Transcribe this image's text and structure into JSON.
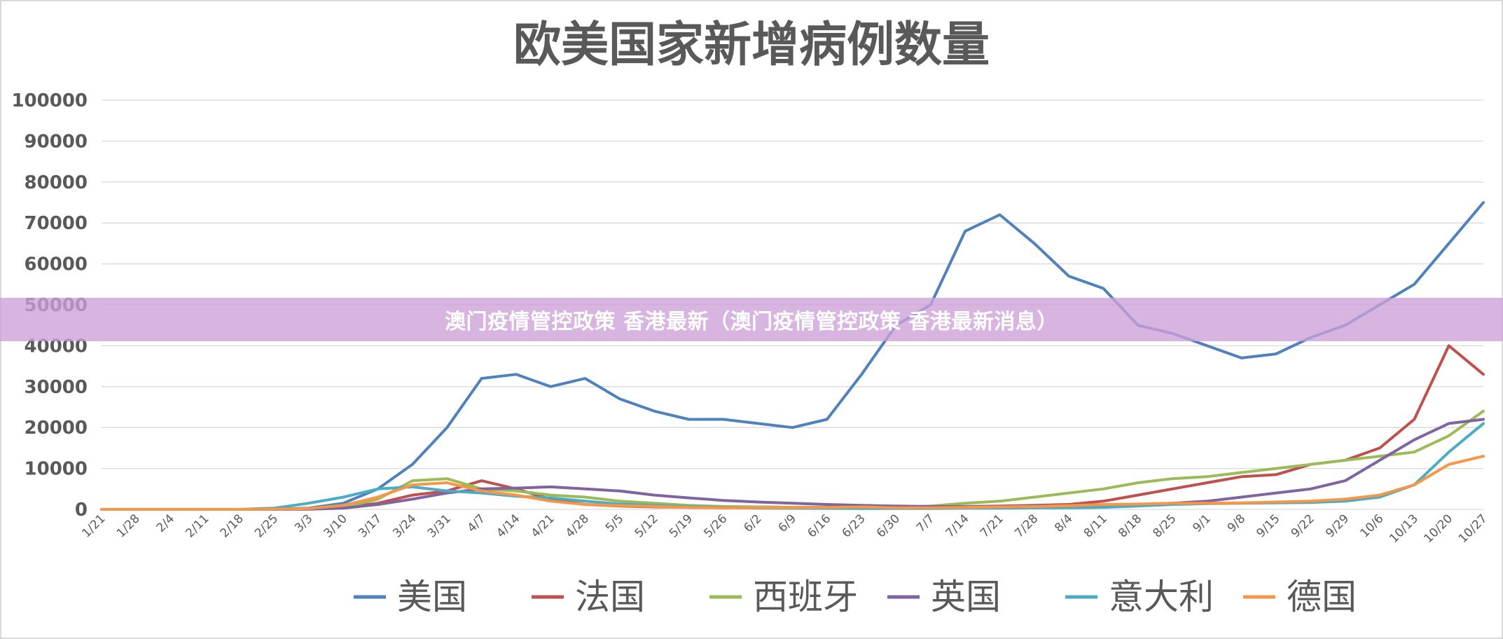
{
  "overlay": {
    "text": "澳门疫情管控政策 香港最新（澳门疫情管控政策 香港最新消息）",
    "background": "#cda0d7",
    "text_color": "#ffffff"
  },
  "chart_data": {
    "type": "line",
    "title": "欧美国家新增病例数量",
    "xlabel": "",
    "ylabel": "",
    "ylim": [
      0,
      100000
    ],
    "yticks": [
      0,
      10000,
      20000,
      30000,
      40000,
      50000,
      60000,
      70000,
      80000,
      90000,
      100000
    ],
    "grid": true,
    "legend_position": "bottom",
    "categories": [
      "1/21",
      "1/28",
      "2/4",
      "2/11",
      "2/18",
      "2/25",
      "3/3",
      "3/10",
      "3/17",
      "3/24",
      "3/31",
      "4/7",
      "4/14",
      "4/21",
      "4/28",
      "5/5",
      "5/12",
      "5/19",
      "5/26",
      "6/2",
      "6/9",
      "6/16",
      "6/23",
      "6/30",
      "7/7",
      "7/14",
      "7/21",
      "7/28",
      "8/4",
      "8/11",
      "8/18",
      "8/25",
      "9/1",
      "9/8",
      "9/15",
      "9/22",
      "9/29",
      "10/6",
      "10/13",
      "10/20",
      "10/27"
    ],
    "series": [
      {
        "name": "美国",
        "color": "#4f81bd",
        "values": [
          0,
          0,
          0,
          0,
          0,
          100,
          300,
          1500,
          5000,
          11000,
          20000,
          32000,
          33000,
          30000,
          32000,
          27000,
          24000,
          22000,
          22000,
          21000,
          20000,
          22000,
          33000,
          45000,
          50000,
          68000,
          72000,
          65000,
          57000,
          54000,
          45000,
          43000,
          40000,
          37000,
          38000,
          42000,
          45000,
          50000,
          55000,
          65000,
          75000
        ]
      },
      {
        "name": "法国",
        "color": "#c0504d",
        "values": [
          0,
          0,
          0,
          0,
          0,
          50,
          100,
          500,
          1500,
          3500,
          4500,
          7000,
          5000,
          2500,
          1200,
          800,
          600,
          500,
          400,
          600,
          500,
          500,
          600,
          500,
          600,
          700,
          800,
          1000,
          1200,
          2000,
          3500,
          5000,
          6500,
          8000,
          8500,
          11000,
          12000,
          15000,
          22000,
          40000,
          33000
        ]
      },
      {
        "name": "西班牙",
        "color": "#9bbb59",
        "values": [
          0,
          0,
          0,
          0,
          0,
          50,
          100,
          500,
          2500,
          7000,
          7500,
          5000,
          4500,
          3500,
          3000,
          2000,
          1500,
          1000,
          700,
          600,
          500,
          500,
          500,
          500,
          800,
          1500,
          2000,
          3000,
          4000,
          5000,
          6500,
          7500,
          8000,
          9000,
          10000,
          11000,
          12000,
          13000,
          14000,
          18000,
          24000
        ]
      },
      {
        "name": "英国",
        "color": "#8064a2",
        "values": [
          0,
          0,
          0,
          0,
          0,
          0,
          50,
          300,
          1200,
          2500,
          4000,
          5000,
          5200,
          5500,
          5000,
          4500,
          3500,
          2800,
          2200,
          1800,
          1500,
          1200,
          1000,
          800,
          700,
          700,
          700,
          800,
          900,
          1000,
          1200,
          1500,
          2000,
          3000,
          4000,
          5000,
          7000,
          12000,
          17000,
          21000,
          22000
        ]
      },
      {
        "name": "意大利",
        "color": "#4bacc6",
        "values": [
          0,
          0,
          0,
          0,
          0,
          300,
          1500,
          3000,
          5000,
          5500,
          4500,
          4000,
          3200,
          2800,
          2000,
          1300,
          1000,
          700,
          500,
          300,
          250,
          250,
          200,
          200,
          200,
          300,
          300,
          400,
          400,
          500,
          800,
          1200,
          1400,
          1500,
          1600,
          1700,
          2000,
          3000,
          6000,
          14000,
          21000
        ]
      },
      {
        "name": "德国",
        "color": "#f79646",
        "values": [
          0,
          0,
          0,
          0,
          0,
          50,
          200,
          1000,
          3000,
          6000,
          6500,
          4500,
          3500,
          2000,
          1200,
          900,
          700,
          500,
          400,
          400,
          400,
          500,
          600,
          400,
          400,
          500,
          600,
          700,
          900,
          1200,
          1300,
          1500,
          1500,
          1600,
          1800,
          2000,
          2500,
          3500,
          6000,
          11000,
          13000
        ]
      }
    ]
  }
}
